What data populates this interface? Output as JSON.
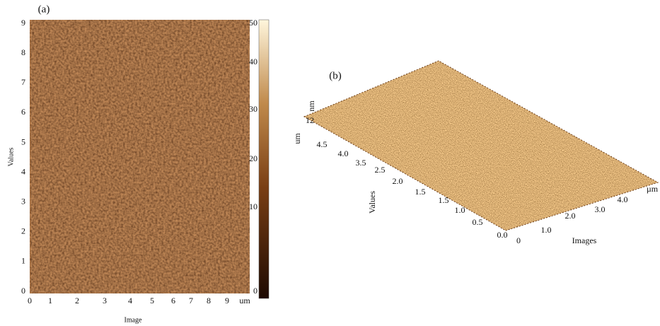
{
  "panel_a": {
    "label": "(a)",
    "y_axis_title": "Values",
    "x_axis_title": "Image",
    "y_ticks": [
      "0",
      "1",
      "2",
      "3",
      "4",
      "5",
      "6",
      "7",
      "8",
      "9"
    ],
    "x_ticks": [
      "0",
      "1",
      "2",
      "3",
      "4",
      "5",
      "6",
      "7",
      "8",
      "9"
    ],
    "x_unit": "um",
    "colorbar_ticks": [
      "0",
      "10",
      "20",
      "30",
      "40",
      "50"
    ]
  },
  "panel_b": {
    "label": "(b)",
    "z_unit": "nm",
    "z_tick": "12",
    "y_unit": "um",
    "y_ticks": [
      "4.5",
      "4.0",
      "3.5",
      "2.5",
      "2.0",
      "1.5",
      "1.5",
      "1.0",
      "0.5",
      "0.0"
    ],
    "x_ticks": [
      "0",
      "1.0",
      "2.0",
      "3.0",
      "4.0"
    ],
    "x_unit": "µm",
    "y_axis_title": "Values",
    "x_axis_title": "Images"
  }
}
